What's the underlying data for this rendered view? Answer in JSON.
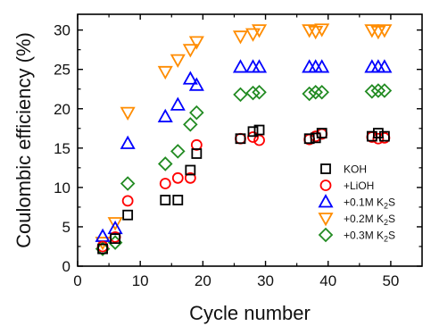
{
  "chart_data": {
    "type": "scatter",
    "xlabel": "Cycle number",
    "ylabel": "Coulombic efficiency (%)",
    "xlim": [
      0,
      55
    ],
    "ylim": [
      0,
      32
    ],
    "x_ticks": [
      0,
      10,
      20,
      30,
      40,
      50
    ],
    "y_ticks": [
      0,
      5,
      10,
      15,
      20,
      25,
      30
    ],
    "legend_position": "lower-right",
    "series": [
      {
        "name": "KOH",
        "marker": "square",
        "color": "#000000",
        "points": [
          [
            4,
            2.2
          ],
          [
            6,
            3.5
          ],
          [
            8,
            6.5
          ],
          [
            14,
            8.4
          ],
          [
            16,
            8.4
          ],
          [
            18,
            12.2
          ],
          [
            19,
            14.3
          ],
          [
            26,
            16.2
          ],
          [
            28,
            17.1
          ],
          [
            29,
            17.3
          ],
          [
            37,
            16.2
          ],
          [
            38,
            16.3
          ],
          [
            39,
            16.9
          ],
          [
            47,
            16.5
          ],
          [
            48,
            16.9
          ],
          [
            49,
            16.5
          ]
        ]
      },
      {
        "name": "+LiOH",
        "marker": "circle",
        "color": "#ff0000",
        "points": [
          [
            4,
            2.5
          ],
          [
            6,
            3.7
          ],
          [
            8,
            8.3
          ],
          [
            14,
            10.5
          ],
          [
            16,
            11.2
          ],
          [
            18,
            11.2
          ],
          [
            19,
            15.4
          ],
          [
            26,
            16.2
          ],
          [
            28,
            16.4
          ],
          [
            29,
            16.0
          ],
          [
            37,
            16.1
          ],
          [
            38,
            16.5
          ],
          [
            39,
            16.8
          ],
          [
            47,
            16.4
          ],
          [
            48,
            16.2
          ],
          [
            49,
            16.3
          ]
        ]
      },
      {
        "name": "+0.1M K2S",
        "label_main": "+0.1M K",
        "label_sub": "2",
        "label_tail": "S",
        "marker": "triangle-up",
        "color": "#0000ff",
        "points": [
          [
            4,
            3.8
          ],
          [
            6,
            4.8
          ],
          [
            8,
            15.6
          ],
          [
            14,
            19.0
          ],
          [
            16,
            20.5
          ],
          [
            18,
            23.8
          ],
          [
            19,
            23.0
          ],
          [
            26,
            25.3
          ],
          [
            28,
            25.3
          ],
          [
            29,
            25.3
          ],
          [
            37,
            25.3
          ],
          [
            38,
            25.3
          ],
          [
            39,
            25.3
          ],
          [
            47,
            25.3
          ],
          [
            48,
            25.3
          ],
          [
            49,
            25.3
          ]
        ]
      },
      {
        "name": "+0.2M K2S",
        "label_main": "+0.2M K",
        "label_sub": "2",
        "label_tail": "S",
        "marker": "triangle-down",
        "color": "#ff8c00",
        "points": [
          [
            4,
            3.0
          ],
          [
            6,
            5.5
          ],
          [
            8,
            19.5
          ],
          [
            14,
            24.7
          ],
          [
            16,
            26.2
          ],
          [
            18,
            27.5
          ],
          [
            19,
            28.5
          ],
          [
            26,
            29.2
          ],
          [
            28,
            29.5
          ],
          [
            29,
            30.0
          ],
          [
            37,
            30.0
          ],
          [
            38,
            29.8
          ],
          [
            39,
            30.1
          ],
          [
            47,
            30.0
          ],
          [
            48,
            29.8
          ],
          [
            49,
            30.0
          ]
        ]
      },
      {
        "name": "+0.3M K2S",
        "label_main": "+0.3M K",
        "label_sub": "2",
        "label_tail": "S",
        "marker": "diamond",
        "color": "#228b22",
        "points": [
          [
            4,
            2.2
          ],
          [
            6,
            3.0
          ],
          [
            8,
            10.5
          ],
          [
            14,
            13.0
          ],
          [
            16,
            14.6
          ],
          [
            18,
            18.0
          ],
          [
            19,
            19.5
          ],
          [
            26,
            21.8
          ],
          [
            28,
            22.0
          ],
          [
            29,
            22.1
          ],
          [
            37,
            21.9
          ],
          [
            38,
            22.1
          ],
          [
            39,
            22.1
          ],
          [
            47,
            22.2
          ],
          [
            48,
            22.3
          ],
          [
            49,
            22.3
          ]
        ]
      }
    ]
  }
}
